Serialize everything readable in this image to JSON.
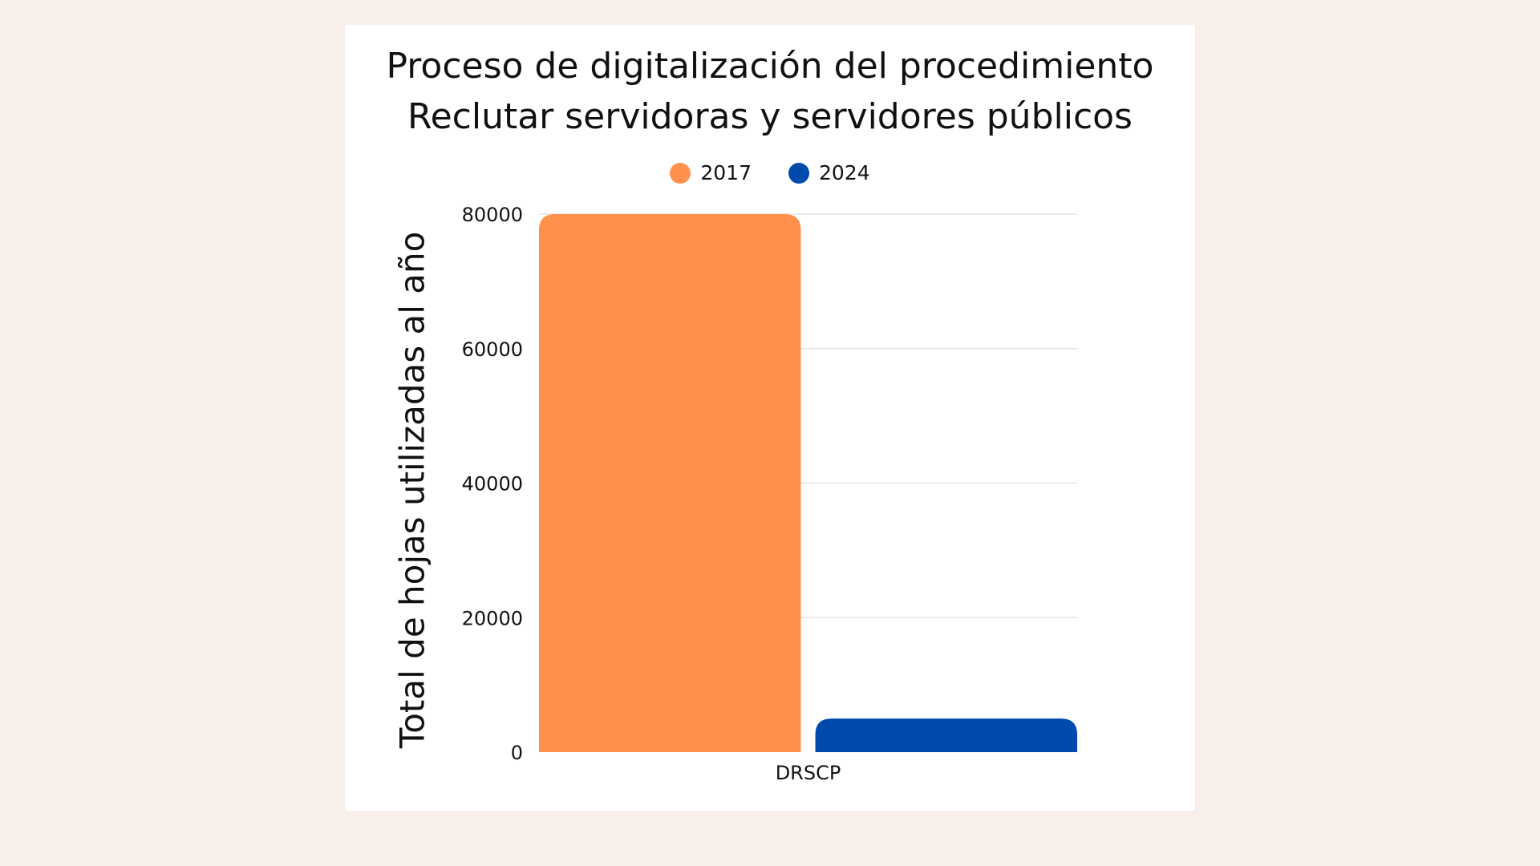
{
  "chart_data": {
    "type": "bar",
    "title_lines": [
      "Proceso de digitalización del procedimiento",
      "Reclutar servidoras y servidores públicos"
    ],
    "xlabel": "",
    "ylabel": "Total de hojas utilizadas al año",
    "categories": [
      "DRSCP"
    ],
    "series": [
      {
        "name": "2017",
        "color": "#ff914d",
        "values": [
          80000
        ]
      },
      {
        "name": "2024",
        "color": "#004aad",
        "values": [
          5000
        ]
      }
    ],
    "ylim": [
      0,
      80000
    ],
    "yticks": [
      "0",
      "20000",
      "40000",
      "60000",
      "80000"
    ],
    "grid": true,
    "legend_position": "top-center"
  }
}
